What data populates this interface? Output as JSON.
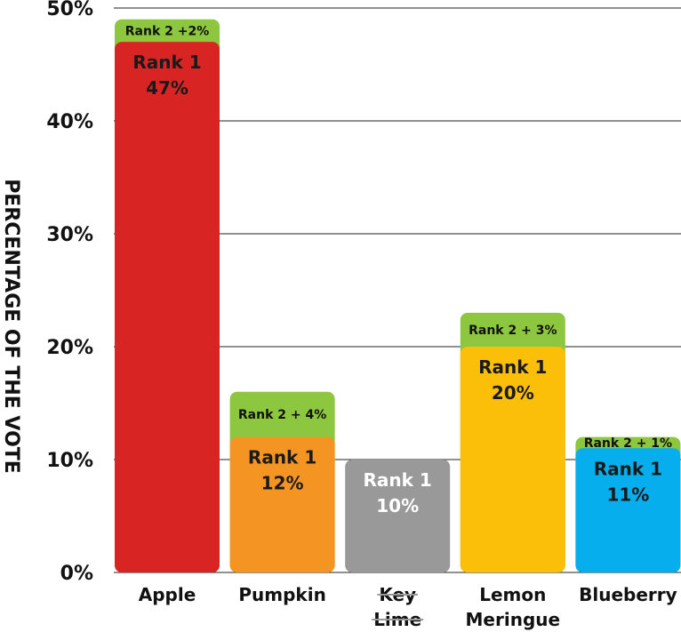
{
  "chart_data": {
    "type": "bar",
    "ylabel": "PERCENTAGE OF THE VOTE",
    "ylim": [
      0,
      50
    ],
    "yticks": [
      0,
      10,
      20,
      30,
      40,
      50
    ],
    "ytick_labels": [
      "0%",
      "10%",
      "20%",
      "30%",
      "40%",
      "50%"
    ],
    "grid": true,
    "categories": [
      {
        "lines": [
          "Apple"
        ],
        "struck": false
      },
      {
        "lines": [
          "Pumpkin"
        ],
        "struck": false
      },
      {
        "lines": [
          "Key",
          "Lime"
        ],
        "struck": true
      },
      {
        "lines": [
          "Lemon",
          "Meringue"
        ],
        "struck": false
      },
      {
        "lines": [
          "Blueberry"
        ],
        "struck": false
      }
    ],
    "series": [
      {
        "name": "Rank 1",
        "values": [
          47,
          12,
          10,
          20,
          11
        ],
        "labels": [
          [
            "Rank 1",
            "47%"
          ],
          [
            "Rank 1",
            "12%"
          ],
          [
            "Rank 1",
            "10%"
          ],
          [
            "Rank 1",
            "20%"
          ],
          [
            "Rank 1",
            "11%"
          ]
        ],
        "colors": [
          "#d92424",
          "#f49423",
          "#999999",
          "#fbbf0a",
          "#07aeee"
        ],
        "text_colors": [
          "#1a1a1a",
          "#1a1a1a",
          "#ffffff",
          "#1a1a1a",
          "#1a1a1a"
        ]
      },
      {
        "name": "Rank 2",
        "values": [
          2,
          4,
          0,
          3,
          1
        ],
        "labels": [
          "Rank 2 +2%",
          "Rank 2 + 4%",
          "",
          "Rank 2 + 3%",
          "Rank 2 + 1%"
        ],
        "color": "#8dc63f"
      }
    ]
  }
}
